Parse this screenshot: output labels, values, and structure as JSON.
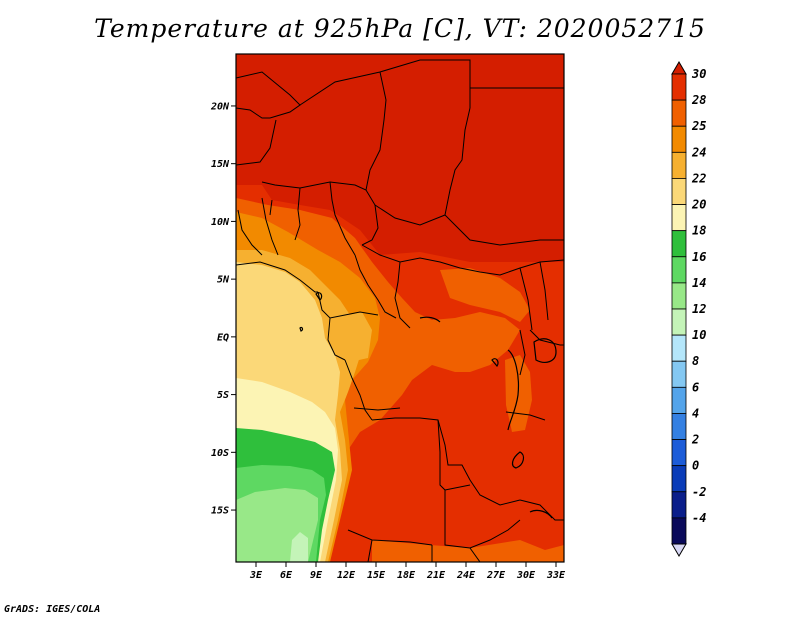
{
  "title": "Temperature at 925hPa [C], VT: 2020052715",
  "footer": "GrADS: IGES/COLA",
  "map": {
    "lat_range": [
      -19.5,
      24.5
    ],
    "lon_range": [
      1,
      33.8
    ],
    "lat_ticks": [
      {
        "value": 20,
        "label": "20N"
      },
      {
        "value": 15,
        "label": "15N"
      },
      {
        "value": 10,
        "label": "10N"
      },
      {
        "value": 5,
        "label": "5N"
      },
      {
        "value": 0,
        "label": "EQ"
      },
      {
        "value": -5,
        "label": "5S"
      },
      {
        "value": -10,
        "label": "10S"
      },
      {
        "value": -15,
        "label": "15S"
      }
    ],
    "lon_ticks": [
      {
        "value": 3,
        "label": "3E"
      },
      {
        "value": 6,
        "label": "6E"
      },
      {
        "value": 9,
        "label": "9E"
      },
      {
        "value": 12,
        "label": "12E"
      },
      {
        "value": 15,
        "label": "15E"
      },
      {
        "value": 18,
        "label": "18E"
      },
      {
        "value": 21,
        "label": "21E"
      },
      {
        "value": 24,
        "label": "24E"
      },
      {
        "value": 27,
        "label": "27E"
      },
      {
        "value": 30,
        "label": "30E"
      },
      {
        "value": 33,
        "label": "33E"
      }
    ]
  },
  "colorbar": {
    "labels": [
      "30",
      "28",
      "25",
      "24",
      "22",
      "20",
      "18",
      "16",
      "14",
      "12",
      "10",
      "8",
      "6",
      "4",
      "2",
      "0",
      "-2",
      "-4"
    ],
    "colors": [
      "#d41e00",
      "#e42e00",
      "#f06000",
      "#f28a00",
      "#f6b030",
      "#fbd878",
      "#fcf4b4",
      "#2fbf3c",
      "#5ed862",
      "#98e888",
      "#c4f4b8",
      "#b4e6fa",
      "#84c8f2",
      "#54a4ea",
      "#3480e2",
      "#1c5cd8",
      "#0a3cb8",
      "#0a1e8a",
      "#0a0a5a",
      "#d8d8f4"
    ]
  }
}
